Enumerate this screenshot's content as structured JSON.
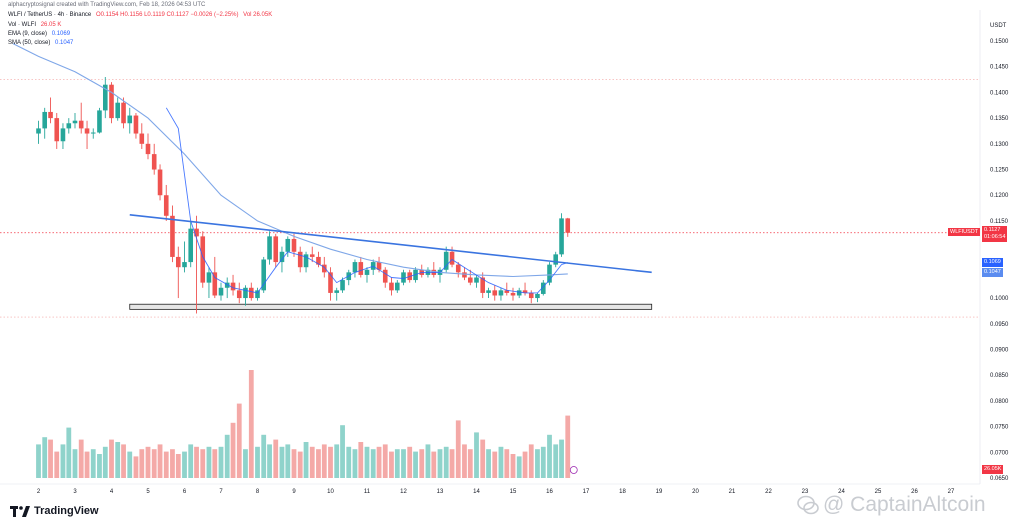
{
  "header": {
    "created_by": "alphacryptosignal created with TradingView.com, Feb 18, 2026 04:53 UTC",
    "title": "WLFI / TetherUS · 4h · Binance",
    "ohlc": "O0.1154 H0.1156 L0.1119 C0.1127 −0.0026 (−2.25%)",
    "volume_label": "Vol 26.05K",
    "vol_title": "Vol · WLFI",
    "vol_value": "26.05 K",
    "ema_title": "EMA (9, close)",
    "ema_value": "0.1069",
    "sma_title": "SMA (50, close)",
    "sma_value": "0.1047"
  },
  "price_axis": {
    "unit": "USDT",
    "labels": [
      "0.1500",
      "0.1450",
      "0.1400",
      "0.1350",
      "0.1300",
      "0.1250",
      "0.1200",
      "0.1150",
      "0.1000",
      "0.0950",
      "0.0900",
      "0.0850",
      "0.0800",
      "0.0750",
      "0.0700",
      "0.0650"
    ],
    "symbol_badge": "WLFIUSDT",
    "price_badge": "0.1127",
    "countdown_badge": "01:06:54",
    "ema_badge": "0.1069",
    "sma_badge": "0.1047",
    "vol_badge": "26.05K"
  },
  "time_axis": {
    "labels": [
      "2",
      "3",
      "4",
      "5",
      "6",
      "7",
      "8",
      "9",
      "10",
      "11",
      "12",
      "13",
      "14",
      "15",
      "16",
      "17",
      "18",
      "19",
      "20",
      "21",
      "22",
      "23",
      "24",
      "25",
      "26",
      "27"
    ]
  },
  "brand": "TradingView",
  "watermark": "@ CaptainAltcoin",
  "colors": {
    "up": "#26a69a",
    "down": "#ef5350",
    "vol_up": "#8fd3cb",
    "vol_down": "#f4a9a7",
    "ema": "#2962ff",
    "sma": "#7fa7e8",
    "trendline": "#3a74e0",
    "support_box": "#e6e6e6"
  },
  "chart_data": {
    "type": "candlestick",
    "timeframe": "4h",
    "price_range": [
      0.065,
      0.152
    ],
    "days": [
      2,
      3,
      4,
      5,
      6,
      7,
      8,
      9,
      10,
      11,
      12,
      13,
      14,
      15,
      16,
      17,
      18,
      19,
      20,
      21,
      22,
      23,
      24,
      25,
      26,
      27
    ],
    "candles": [
      [
        2.0,
        0.132,
        0.1345,
        0.13,
        0.133
      ],
      [
        2.17,
        0.133,
        0.137,
        0.131,
        0.1362
      ],
      [
        2.33,
        0.1362,
        0.139,
        0.134,
        0.135
      ],
      [
        2.5,
        0.135,
        0.136,
        0.129,
        0.1305
      ],
      [
        2.67,
        0.1305,
        0.134,
        0.129,
        0.133
      ],
      [
        2.83,
        0.133,
        0.135,
        0.132,
        0.134
      ],
      [
        3.0,
        0.134,
        0.136,
        0.133,
        0.1345
      ],
      [
        3.17,
        0.1345,
        0.138,
        0.132,
        0.133
      ],
      [
        3.33,
        0.133,
        0.1345,
        0.129,
        0.132
      ],
      [
        3.5,
        0.132,
        0.133,
        0.131,
        0.1322
      ],
      [
        3.67,
        0.1322,
        0.137,
        0.132,
        0.1365
      ],
      [
        3.83,
        0.1365,
        0.143,
        0.135,
        0.1415
      ],
      [
        4.0,
        0.1415,
        0.142,
        0.134,
        0.135
      ],
      [
        4.17,
        0.135,
        0.139,
        0.1345,
        0.138
      ],
      [
        4.33,
        0.138,
        0.139,
        0.133,
        0.134
      ],
      [
        4.5,
        0.134,
        0.137,
        0.132,
        0.1355
      ],
      [
        4.67,
        0.1355,
        0.136,
        0.131,
        0.132
      ],
      [
        4.83,
        0.132,
        0.134,
        0.129,
        0.13
      ],
      [
        5.0,
        0.13,
        0.132,
        0.127,
        0.128
      ],
      [
        5.17,
        0.128,
        0.13,
        0.124,
        0.125
      ],
      [
        5.33,
        0.125,
        0.126,
        0.119,
        0.12
      ],
      [
        5.5,
        0.12,
        0.122,
        0.115,
        0.116
      ],
      [
        5.67,
        0.116,
        0.118,
        0.107,
        0.108
      ],
      [
        5.83,
        0.108,
        0.11,
        0.1,
        0.106
      ],
      [
        6.0,
        0.106,
        0.111,
        0.105,
        0.107
      ],
      [
        6.17,
        0.107,
        0.115,
        0.106,
        0.1135
      ],
      [
        6.33,
        0.1135,
        0.116,
        0.097,
        0.112
      ],
      [
        6.5,
        0.112,
        0.113,
        0.102,
        0.103
      ],
      [
        6.67,
        0.103,
        0.106,
        0.1,
        0.105
      ],
      [
        6.83,
        0.105,
        0.108,
        0.1,
        0.1005
      ],
      [
        7.0,
        0.1005,
        0.103,
        0.0995,
        0.102
      ],
      [
        7.17,
        0.102,
        0.104,
        0.1,
        0.103
      ],
      [
        7.33,
        0.103,
        0.1045,
        0.1005,
        0.1015
      ],
      [
        7.5,
        0.1015,
        0.103,
        0.099,
        0.1
      ],
      [
        7.67,
        0.1,
        0.1025,
        0.0985,
        0.102
      ],
      [
        7.83,
        0.102,
        0.103,
        0.0995,
        0.1
      ],
      [
        8.0,
        0.1,
        0.102,
        0.0995,
        0.1015
      ],
      [
        8.17,
        0.1015,
        0.108,
        0.101,
        0.1075
      ],
      [
        8.33,
        0.1075,
        0.113,
        0.1065,
        0.112
      ],
      [
        8.5,
        0.112,
        0.1125,
        0.106,
        0.107
      ],
      [
        8.67,
        0.107,
        0.11,
        0.105,
        0.109
      ],
      [
        8.83,
        0.109,
        0.112,
        0.108,
        0.1115
      ],
      [
        9.0,
        0.1115,
        0.1125,
        0.108,
        0.109
      ],
      [
        9.17,
        0.109,
        0.11,
        0.105,
        0.106
      ],
      [
        9.33,
        0.106,
        0.109,
        0.105,
        0.1085
      ],
      [
        9.5,
        0.1085,
        0.11,
        0.107,
        0.108
      ],
      [
        9.67,
        0.108,
        0.109,
        0.106,
        0.1065
      ],
      [
        9.83,
        0.1065,
        0.108,
        0.104,
        0.105
      ],
      [
        10.0,
        0.105,
        0.106,
        0.0995,
        0.101
      ],
      [
        10.17,
        0.101,
        0.102,
        0.0995,
        0.1015
      ],
      [
        10.33,
        0.1015,
        0.104,
        0.101,
        0.1035
      ],
      [
        10.5,
        0.1035,
        0.1055,
        0.1025,
        0.105
      ],
      [
        10.67,
        0.105,
        0.1075,
        0.104,
        0.107
      ],
      [
        10.83,
        0.107,
        0.108,
        0.104,
        0.1045
      ],
      [
        11.0,
        0.1045,
        0.106,
        0.103,
        0.1055
      ],
      [
        11.17,
        0.1055,
        0.1075,
        0.1045,
        0.107
      ],
      [
        11.33,
        0.107,
        0.108,
        0.105,
        0.1055
      ],
      [
        11.5,
        0.1055,
        0.106,
        0.102,
        0.103
      ],
      [
        11.67,
        0.103,
        0.104,
        0.1005,
        0.1015
      ],
      [
        11.83,
        0.1015,
        0.1035,
        0.101,
        0.103
      ],
      [
        12.0,
        0.103,
        0.1055,
        0.1025,
        0.105
      ],
      [
        12.17,
        0.105,
        0.1055,
        0.103,
        0.1035
      ],
      [
        12.33,
        0.1035,
        0.106,
        0.103,
        0.1055
      ],
      [
        12.5,
        0.1055,
        0.1065,
        0.104,
        0.1045
      ],
      [
        12.67,
        0.1045,
        0.106,
        0.104,
        0.1055
      ],
      [
        12.83,
        0.1055,
        0.107,
        0.104,
        0.1045
      ],
      [
        13.0,
        0.1045,
        0.106,
        0.103,
        0.1055
      ],
      [
        13.17,
        0.1055,
        0.11,
        0.105,
        0.109
      ],
      [
        13.33,
        0.109,
        0.11,
        0.106,
        0.1065
      ],
      [
        13.5,
        0.1065,
        0.107,
        0.104,
        0.105
      ],
      [
        13.67,
        0.105,
        0.106,
        0.1035,
        0.104
      ],
      [
        13.83,
        0.104,
        0.1055,
        0.1025,
        0.103
      ],
      [
        14.0,
        0.103,
        0.1045,
        0.102,
        0.104
      ],
      [
        14.17,
        0.104,
        0.105,
        0.1,
        0.101
      ],
      [
        14.33,
        0.101,
        0.102,
        0.1,
        0.1015
      ],
      [
        14.5,
        0.1015,
        0.1025,
        0.0995,
        0.1005
      ],
      [
        14.67,
        0.1005,
        0.102,
        0.0995,
        0.1015
      ],
      [
        14.83,
        0.1015,
        0.103,
        0.1005,
        0.101
      ],
      [
        15.0,
        0.101,
        0.102,
        0.0995,
        0.1005
      ],
      [
        15.17,
        0.1005,
        0.102,
        0.1,
        0.1015
      ],
      [
        15.33,
        0.1015,
        0.103,
        0.1005,
        0.101
      ],
      [
        15.5,
        0.101,
        0.1015,
        0.099,
        0.1
      ],
      [
        15.67,
        0.1,
        0.101,
        0.0992,
        0.1008
      ],
      [
        15.83,
        0.1008,
        0.1035,
        0.1005,
        0.103
      ],
      [
        16.0,
        0.103,
        0.107,
        0.1025,
        0.1065
      ],
      [
        16.17,
        0.1065,
        0.109,
        0.106,
        0.1085
      ],
      [
        16.33,
        0.1085,
        0.1165,
        0.108,
        0.1155
      ],
      [
        16.5,
        0.1155,
        0.1156,
        0.1119,
        0.1127
      ]
    ],
    "volume_k": [
      14,
      17,
      16,
      11,
      14,
      21,
      12,
      16,
      11,
      12,
      10,
      13,
      16,
      15,
      14,
      11,
      9,
      12,
      13,
      12,
      14,
      11,
      12,
      10,
      11,
      14,
      13,
      12,
      13,
      12,
      13,
      18,
      23,
      31,
      12,
      45,
      13,
      18,
      14,
      16,
      13,
      14,
      12,
      11,
      15,
      13,
      12,
      14,
      13,
      14,
      22,
      13,
      12,
      15,
      13,
      12,
      13,
      14,
      11,
      12,
      12,
      13,
      11,
      12,
      14,
      11,
      12,
      13,
      12,
      24,
      14,
      12,
      19,
      16,
      12,
      11,
      13,
      12,
      10,
      9,
      11,
      14,
      12,
      13,
      18,
      14,
      16,
      26
    ],
    "ema9_points": [
      [
        5.5,
        0.137
      ],
      [
        5.83,
        0.133
      ],
      [
        6.0,
        0.124
      ],
      [
        6.17,
        0.115
      ],
      [
        6.5,
        0.108
      ],
      [
        6.83,
        0.104
      ],
      [
        7.33,
        0.102
      ],
      [
        8.0,
        0.101
      ],
      [
        8.5,
        0.106
      ],
      [
        8.83,
        0.109
      ],
      [
        9.33,
        0.108
      ],
      [
        9.83,
        0.106
      ],
      [
        10.17,
        0.103
      ],
      [
        10.67,
        0.105
      ],
      [
        11.17,
        0.1062
      ],
      [
        11.67,
        0.104
      ],
      [
        12.0,
        0.1038
      ],
      [
        12.5,
        0.105
      ],
      [
        13.0,
        0.105
      ],
      [
        13.33,
        0.1075
      ],
      [
        13.83,
        0.1052
      ],
      [
        14.33,
        0.103
      ],
      [
        14.83,
        0.1015
      ],
      [
        15.33,
        0.101
      ],
      [
        15.67,
        0.101
      ],
      [
        16.0,
        0.1035
      ],
      [
        16.33,
        0.1065
      ],
      [
        16.5,
        0.1069
      ]
    ],
    "sma50_points": [
      [
        1.3,
        0.1495
      ],
      [
        2.0,
        0.147
      ],
      [
        3.0,
        0.144
      ],
      [
        4.0,
        0.14
      ],
      [
        5.0,
        0.135
      ],
      [
        6.0,
        0.128
      ],
      [
        7.0,
        0.12
      ],
      [
        8.0,
        0.115
      ],
      [
        9.0,
        0.112
      ],
      [
        10.0,
        0.1095
      ],
      [
        11.0,
        0.1075
      ],
      [
        12.0,
        0.106
      ],
      [
        13.0,
        0.105
      ],
      [
        14.0,
        0.1045
      ],
      [
        15.0,
        0.1042
      ],
      [
        16.0,
        0.1045
      ],
      [
        16.5,
        0.1047
      ]
    ],
    "trendline": [
      [
        4.5,
        0.1162
      ],
      [
        18.8,
        0.105
      ]
    ],
    "support_zone": {
      "x": [
        4.5,
        18.8
      ],
      "y": [
        0.0978,
        0.0988
      ]
    },
    "horizontal_levels": [
      0.1425,
      0.1127,
      0.0963
    ],
    "ylim": [
      0.065,
      0.152
    ]
  }
}
